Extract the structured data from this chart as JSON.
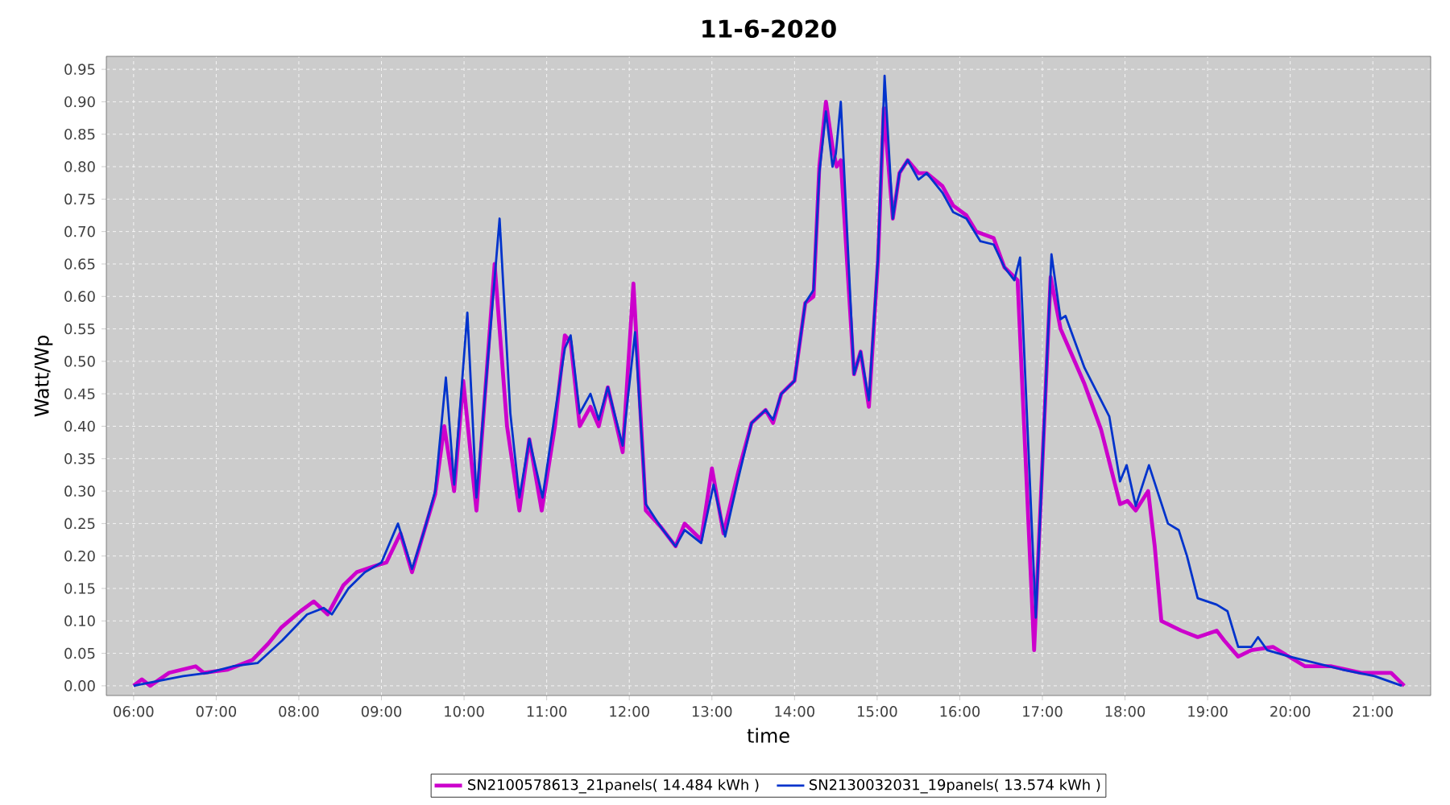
{
  "chart_data": {
    "type": "line",
    "title": "11-6-2020",
    "xlabel": "time",
    "ylabel": "Watt/Wp",
    "xlim": [
      5.67,
      21.7
    ],
    "ylim": [
      -0.015,
      0.97
    ],
    "xticks": [
      {
        "value": 6,
        "label": "06:00"
      },
      {
        "value": 7,
        "label": "07:00"
      },
      {
        "value": 8,
        "label": "08:00"
      },
      {
        "value": 9,
        "label": "09:00"
      },
      {
        "value": 10,
        "label": "10:00"
      },
      {
        "value": 11,
        "label": "11:00"
      },
      {
        "value": 12,
        "label": "12:00"
      },
      {
        "value": 13,
        "label": "13:00"
      },
      {
        "value": 14,
        "label": "14:00"
      },
      {
        "value": 15,
        "label": "15:00"
      },
      {
        "value": 16,
        "label": "16:00"
      },
      {
        "value": 17,
        "label": "17:00"
      },
      {
        "value": 18,
        "label": "18:00"
      },
      {
        "value": 19,
        "label": "19:00"
      },
      {
        "value": 20,
        "label": "20:00"
      },
      {
        "value": 21,
        "label": "21:00"
      }
    ],
    "yticks": [
      {
        "value": 0,
        "label": "0.00"
      },
      0.05,
      {
        "value": 0.1,
        "label": "0.10"
      },
      0.15,
      {
        "value": 0.2,
        "label": "0.20"
      },
      0.25,
      {
        "value": 0.3,
        "label": "0.30"
      },
      0.35,
      {
        "value": 0.4,
        "label": "0.40"
      },
      0.45,
      {
        "value": 0.5,
        "label": "0.50"
      },
      0.55,
      {
        "value": 0.6,
        "label": "0.60"
      },
      0.65,
      {
        "value": 0.7,
        "label": "0.70"
      },
      0.75,
      {
        "value": 0.8,
        "label": "0.80"
      },
      0.85,
      {
        "value": 0.9,
        "label": "0.90"
      },
      0.95
    ],
    "grid": true,
    "legend": "bottom",
    "series": [
      {
        "name": "SN2100578613_21panels( 14.484 kWh )",
        "color": "#cc00cc",
        "x": [
          6.0,
          6.1,
          6.2,
          6.43,
          6.75,
          6.85,
          7.14,
          7.44,
          7.63,
          7.79,
          8.02,
          8.18,
          8.35,
          8.54,
          8.7,
          8.93,
          9.06,
          9.23,
          9.37,
          9.52,
          9.65,
          9.76,
          9.88,
          9.99,
          10.15,
          10.37,
          10.52,
          10.67,
          10.79,
          10.94,
          11.1,
          11.22,
          11.29,
          11.4,
          11.53,
          11.63,
          11.74,
          11.92,
          12.05,
          12.2,
          12.38,
          12.56,
          12.67,
          12.87,
          13.0,
          13.14,
          13.32,
          13.48,
          13.65,
          13.74,
          13.84,
          14.0,
          14.13,
          14.23,
          14.3,
          14.38,
          14.46,
          14.51,
          14.56,
          14.72,
          14.8,
          14.9,
          15.01,
          15.08,
          15.19,
          15.27,
          15.37,
          15.5,
          15.6,
          15.79,
          15.92,
          16.08,
          16.2,
          16.41,
          16.54,
          16.7,
          16.9,
          17.1,
          17.22,
          17.51,
          17.71,
          17.94,
          18.03,
          18.13,
          18.28,
          18.36,
          18.44,
          18.52,
          18.68,
          18.88,
          19.11,
          19.2,
          19.37,
          19.53,
          19.79,
          20.18,
          20.5,
          20.86,
          21.22,
          21.38
        ],
        "values": [
          0.0,
          0.01,
          0.0,
          0.02,
          0.03,
          0.02,
          0.025,
          0.04,
          0.065,
          0.09,
          0.115,
          0.13,
          0.11,
          0.155,
          0.175,
          0.185,
          0.19,
          0.235,
          0.175,
          0.24,
          0.295,
          0.4,
          0.3,
          0.47,
          0.27,
          0.65,
          0.4,
          0.27,
          0.38,
          0.27,
          0.4,
          0.54,
          0.53,
          0.4,
          0.43,
          0.4,
          0.46,
          0.36,
          0.62,
          0.27,
          0.245,
          0.215,
          0.25,
          0.225,
          0.335,
          0.235,
          0.33,
          0.405,
          0.425,
          0.405,
          0.45,
          0.47,
          0.59,
          0.6,
          0.8,
          0.9,
          0.83,
          0.8,
          0.81,
          0.48,
          0.515,
          0.43,
          0.655,
          0.89,
          0.72,
          0.79,
          0.81,
          0.79,
          0.79,
          0.77,
          0.74,
          0.725,
          0.7,
          0.69,
          0.645,
          0.625,
          0.055,
          0.63,
          0.55,
          0.465,
          0.395,
          0.28,
          0.285,
          0.27,
          0.3,
          0.215,
          0.1,
          0.095,
          0.085,
          0.075,
          0.085,
          0.07,
          0.045,
          0.055,
          0.06,
          0.03,
          0.03,
          0.02,
          0.02,
          0.0
        ]
      },
      {
        "name": "SN2130032031_19panels( 13.574 kWh )",
        "color": "#0033cc",
        "x": [
          6.0,
          6.4,
          6.6,
          6.9,
          7.2,
          7.5,
          7.8,
          8.1,
          8.3,
          8.4,
          8.6,
          8.8,
          9.0,
          9.2,
          9.37,
          9.52,
          9.65,
          9.78,
          9.88,
          10.04,
          10.15,
          10.43,
          10.56,
          10.67,
          10.79,
          10.95,
          11.1,
          11.22,
          11.29,
          11.4,
          11.53,
          11.63,
          11.74,
          11.92,
          12.07,
          12.2,
          12.38,
          12.56,
          12.67,
          12.87,
          13.02,
          13.16,
          13.32,
          13.48,
          13.65,
          13.74,
          13.84,
          14.0,
          14.13,
          14.23,
          14.3,
          14.38,
          14.46,
          14.5,
          14.56,
          14.72,
          14.8,
          14.9,
          15.01,
          15.09,
          15.19,
          15.27,
          15.37,
          15.5,
          15.6,
          15.79,
          15.92,
          16.08,
          16.25,
          16.41,
          16.54,
          16.66,
          16.73,
          16.92,
          17.11,
          17.22,
          17.28,
          17.51,
          17.81,
          17.94,
          18.02,
          18.13,
          18.29,
          18.52,
          18.65,
          18.75,
          18.88,
          19.11,
          19.24,
          19.37,
          19.53,
          19.61,
          19.72,
          19.99,
          20.31,
          20.63,
          21.02,
          21.35
        ],
        "values": [
          0.0,
          0.01,
          0.015,
          0.02,
          0.03,
          0.035,
          0.07,
          0.11,
          0.12,
          0.11,
          0.15,
          0.175,
          0.19,
          0.25,
          0.18,
          0.24,
          0.3,
          0.475,
          0.31,
          0.575,
          0.29,
          0.72,
          0.42,
          0.29,
          0.38,
          0.29,
          0.42,
          0.52,
          0.54,
          0.42,
          0.45,
          0.41,
          0.46,
          0.37,
          0.545,
          0.28,
          0.245,
          0.215,
          0.24,
          0.22,
          0.31,
          0.23,
          0.32,
          0.405,
          0.425,
          0.41,
          0.45,
          0.47,
          0.59,
          0.61,
          0.79,
          0.885,
          0.8,
          0.82,
          0.9,
          0.48,
          0.515,
          0.44,
          0.66,
          0.94,
          0.72,
          0.79,
          0.81,
          0.78,
          0.79,
          0.76,
          0.73,
          0.72,
          0.685,
          0.68,
          0.645,
          0.625,
          0.66,
          0.105,
          0.665,
          0.565,
          0.57,
          0.49,
          0.415,
          0.315,
          0.34,
          0.277,
          0.34,
          0.25,
          0.24,
          0.2,
          0.135,
          0.125,
          0.115,
          0.06,
          0.06,
          0.075,
          0.055,
          0.045,
          0.035,
          0.025,
          0.015,
          0.0
        ]
      }
    ]
  }
}
